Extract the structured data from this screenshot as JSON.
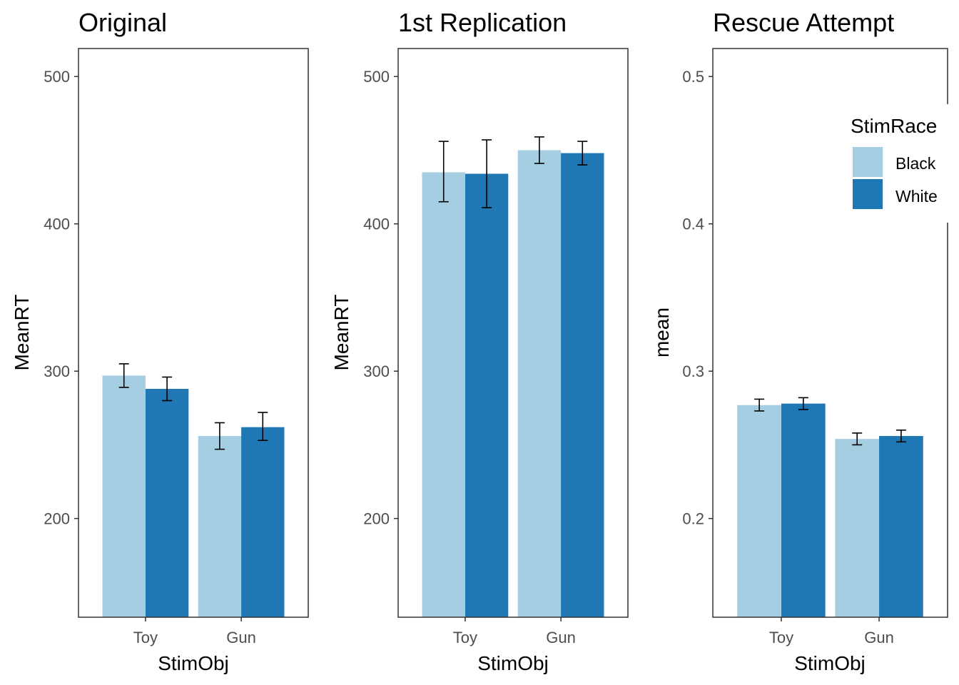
{
  "legend": {
    "title": "StimRace",
    "entries": [
      {
        "label": "Black",
        "color": "#a6cee3"
      },
      {
        "label": "White",
        "color": "#1f78b4"
      }
    ]
  },
  "chart_data": [
    {
      "type": "bar",
      "title": "Original",
      "xlabel": "StimObj",
      "ylabel": "MeanRT",
      "categories": [
        "Toy",
        "Gun"
      ],
      "ylim": [
        133,
        519
      ],
      "yticks": [
        200,
        300,
        400,
        500
      ],
      "grid": false,
      "series": [
        {
          "name": "Black",
          "values": [
            297,
            256
          ],
          "err_low": [
            289,
            247
          ],
          "err_high": [
            305,
            265
          ]
        },
        {
          "name": "White",
          "values": [
            288,
            262
          ],
          "err_low": [
            280,
            253
          ],
          "err_high": [
            296,
            272
          ]
        }
      ]
    },
    {
      "type": "bar",
      "title": "1st Replication",
      "xlabel": "StimObj",
      "ylabel": "MeanRT",
      "categories": [
        "Toy",
        "Gun"
      ],
      "ylim": [
        133,
        519
      ],
      "yticks": [
        200,
        300,
        400,
        500
      ],
      "grid": false,
      "series": [
        {
          "name": "Black",
          "values": [
            435,
            450
          ],
          "err_low": [
            415,
            441
          ],
          "err_high": [
            456,
            459
          ]
        },
        {
          "name": "White",
          "values": [
            434,
            448
          ],
          "err_low": [
            411,
            440
          ],
          "err_high": [
            457,
            456
          ]
        }
      ]
    },
    {
      "type": "bar",
      "title": "Rescue Attempt",
      "xlabel": "StimObj",
      "ylabel": "mean",
      "categories": [
        "Toy",
        "Gun"
      ],
      "ylim": [
        0.133,
        0.519
      ],
      "yticks": [
        0.2,
        0.3,
        0.4,
        0.5
      ],
      "grid": false,
      "legend_position": "top-right",
      "series": [
        {
          "name": "Black",
          "values": [
            0.277,
            0.254
          ],
          "err_low": [
            0.273,
            0.25
          ],
          "err_high": [
            0.281,
            0.258
          ]
        },
        {
          "name": "White",
          "values": [
            0.278,
            0.256
          ],
          "err_low": [
            0.274,
            0.252
          ],
          "err_high": [
            0.282,
            0.26
          ]
        }
      ]
    }
  ]
}
